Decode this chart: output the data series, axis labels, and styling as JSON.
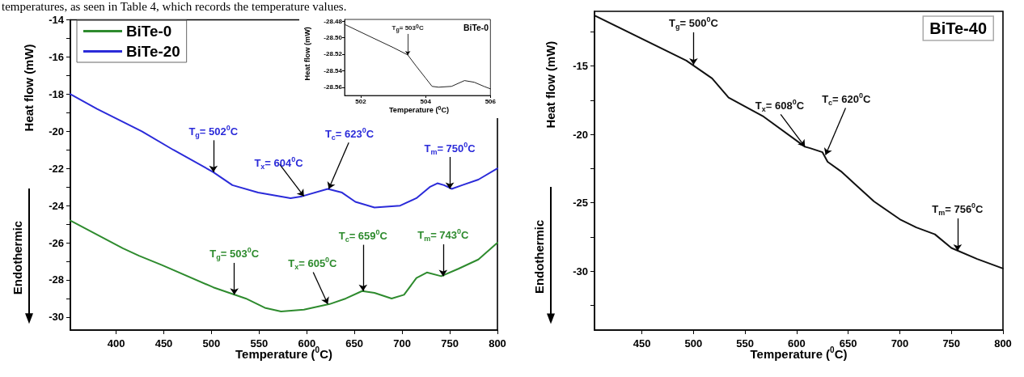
{
  "chart_data": [
    {
      "type": "other",
      "annotations": [
        "temperatures, as seen in Table 4, which records the temperature values."
      ]
    },
    {
      "type": "line",
      "xlabel": "Temperature ($^{0}$C)",
      "ylabel": "Heat flow (mW)",
      "legend": "top left",
      "marker": "none",
      "line_style": "solid",
      "xlim": [
        352,
        800
      ],
      "xticks": [
        400,
        450,
        500,
        550,
        600,
        650,
        700,
        750,
        800
      ],
      "ylim": [
        -30.7,
        -14
      ],
      "yticks": [
        -30,
        {
          "value": -29,
          "label": null
        },
        -28,
        {
          "value": -27,
          "label": null
        },
        -26,
        {
          "value": -25,
          "label": null
        },
        -24,
        {
          "value": -23,
          "label": null
        },
        -22,
        {
          "value": -21,
          "label": null
        },
        -20,
        {
          "value": -19,
          "label": null
        },
        -18,
        {
          "value": -17,
          "label": null
        },
        -16,
        {
          "value": -15,
          "label": null
        },
        -14
      ],
      "series": [
        {
          "name": "BiTe-0",
          "color": "#2e8b2e",
          "x": [
            352,
            407,
            424,
            448,
            502,
            536,
            556,
            573,
            597,
            624,
            641,
            658,
            671,
            689,
            702,
            715,
            726,
            741,
            759,
            780,
            800
          ],
          "values": [
            -24.8,
            -26.3,
            -26.7,
            -27.2,
            -28.4,
            -29.0,
            -29.5,
            -29.7,
            -29.6,
            -29.3,
            -29.0,
            -28.6,
            -28.7,
            -29.0,
            -28.8,
            -27.9,
            -27.6,
            -27.8,
            -27.4,
            -26.9,
            -26.0
          ]
        },
        {
          "name": "BiTe-20",
          "color": "#2b2bd9",
          "x": [
            352,
            380,
            427,
            460,
            502,
            522,
            549,
            583,
            595,
            622,
            637,
            651,
            671,
            698,
            715,
            729,
            737,
            744,
            752,
            763,
            780,
            800
          ],
          "values": [
            -18.0,
            -18.8,
            -20.0,
            -21.0,
            -22.2,
            -22.9,
            -23.3,
            -23.6,
            -23.5,
            -23.1,
            -23.3,
            -23.8,
            -24.1,
            -24.0,
            -23.6,
            -23.0,
            -22.8,
            -22.9,
            -23.1,
            -22.9,
            -22.6,
            -22.0
          ]
        }
      ],
      "annotations": [
        {
          "text": "T$_{g}$= 502$^{0}$C",
          "x": 502,
          "y": -22.2
        },
        {
          "text": "T$_{x}$= 604$^{0}$C",
          "x": 597,
          "y": -23.5
        },
        {
          "text": "T$_{c}$= 623$^{0}$C",
          "x": 623,
          "y": -23.1
        },
        {
          "text": "T$_{m}$= 750$^{0}$C",
          "x": 750,
          "y": -23.1
        },
        {
          "text": "T$_{g}$= 503$^{0}$C",
          "x": 524,
          "y": -28.8
        },
        {
          "text": "T$_{x}$= 605$^{0}$C",
          "x": 622,
          "y": -29.3
        },
        {
          "text": "T$_{c}$= 659$^{0}$C",
          "x": 659,
          "y": -28.6
        },
        {
          "text": "T$_{m}$= 743$^{0}$C",
          "x": 743,
          "y": -27.8
        },
        "Endothermic"
      ]
    },
    {
      "type": "line",
      "title": "BiTe-0",
      "xlabel": "Temperature ($^{0}$C)",
      "ylabel": "Heat flow (mW)",
      "marker": "none",
      "line_style": "solid",
      "xlim": [
        501.5,
        506
      ],
      "xticks": [
        502,
        504,
        506
      ],
      "ylim": [
        -28.57,
        -28.478
      ],
      "yticks": [
        {
          "value": -28.56,
          "label": "-28.56"
        },
        {
          "value": -28.54,
          "label": "-28.54"
        },
        {
          "value": -28.52,
          "label": "-28.52"
        },
        {
          "value": -28.5,
          "label": "-28.50"
        },
        {
          "value": -28.48,
          "label": "-28.48"
        }
      ],
      "series": [
        {
          "color": "#222222",
          "x": [
            501.5,
            502.3,
            503.0,
            503.45,
            503.7,
            504.0,
            504.2,
            504.4,
            504.8,
            505.2,
            505.5,
            505.8,
            506
          ],
          "values": [
            -28.484,
            -28.499,
            -28.512,
            -28.521,
            -28.534,
            -28.549,
            -28.559,
            -28.56,
            -28.559,
            -28.552,
            -28.554,
            -28.559,
            -28.562
          ]
        }
      ],
      "annotations": [
        {
          "text": "T$_{g}$= 503$^{0}$C",
          "x": 503.45,
          "y": -28.521
        }
      ]
    },
    {
      "type": "line",
      "title": "BiTe-40",
      "xlabel": "Temperature ($^{0}$C)",
      "ylabel": "Heat flow (mW)",
      "marker": "none",
      "line_style": "solid",
      "xlim": [
        404,
        800
      ],
      "xticks": [
        450,
        500,
        550,
        600,
        650,
        700,
        750,
        800
      ],
      "ylim": [
        -34.3,
        -11
      ],
      "yticks": [
        {
          "value": -32.5,
          "label": null
        },
        -30,
        {
          "value": -27.5,
          "label": null
        },
        -25,
        {
          "value": -22.5,
          "label": null
        },
        -20,
        {
          "value": -17.5,
          "label": null
        },
        -15,
        {
          "value": -12.5,
          "label": null
        }
      ],
      "series": [
        {
          "color": "#111111",
          "x": [
            404,
            493,
            518,
            534,
            568,
            608,
            613,
            625,
            630,
            643,
            659,
            675,
            700,
            716,
            734,
            750,
            775,
            800
          ],
          "values": [
            -11.3,
            -14.6,
            -15.9,
            -17.3,
            -18.7,
            -20.9,
            -21.0,
            -21.3,
            -22.0,
            -22.7,
            -23.8,
            -24.9,
            -26.2,
            -26.8,
            -27.3,
            -28.3,
            -29.1,
            -29.8
          ]
        }
      ],
      "annotations": [
        {
          "text": "T$_{g}$= 500$^{0}$C",
          "x": 500,
          "y": -14.9
        },
        {
          "text": "T$_{x}$= 608$^{0}$C",
          "x": 608,
          "y": -20.9
        },
        {
          "text": "T$_{c}$= 620$^{0}$C",
          "x": 628,
          "y": -21.5
        },
        {
          "text": "T$_{m}$= 756$^{0}$C",
          "x": 756,
          "y": -28.5
        },
        "Endothermic"
      ]
    }
  ]
}
